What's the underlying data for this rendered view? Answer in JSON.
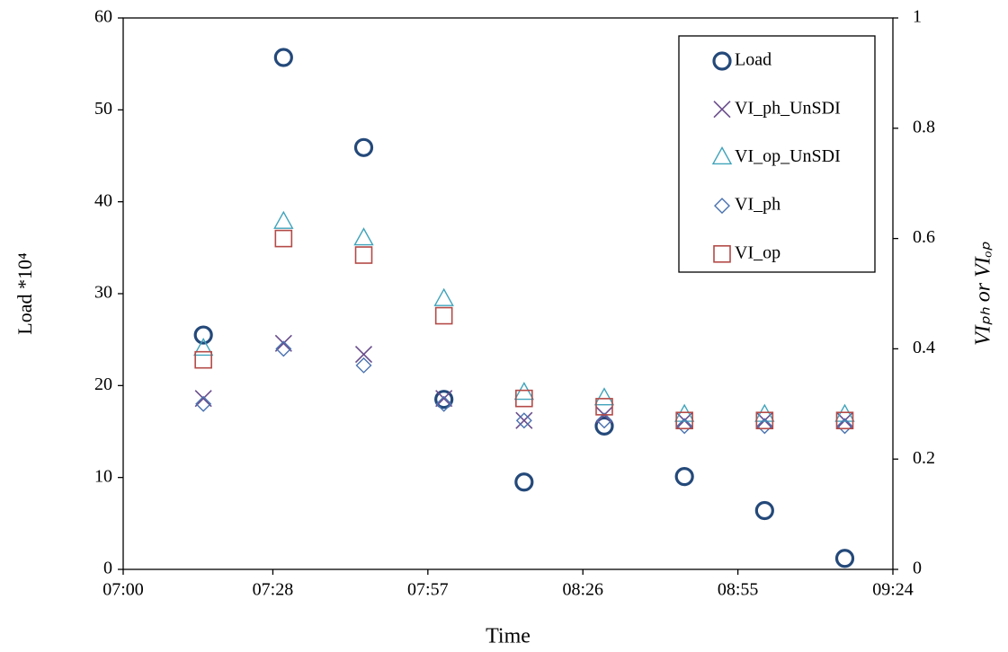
{
  "chart_data": {
    "type": "scatter",
    "x_label": "Time",
    "y_label": "Load *10⁴",
    "y2_label": "VIₚₕ or VIₒₚ",
    "x": [
      "07:15",
      "07:30",
      "07:45",
      "08:00",
      "08:15",
      "08:30",
      "08:45",
      "09:00",
      "09:15"
    ],
    "xlim": [
      "07:00",
      "09:24"
    ],
    "xticks": [
      "07:00",
      "07:28",
      "07:57",
      "08:26",
      "08:55",
      "09:24"
    ],
    "ylim": [
      0,
      60
    ],
    "yticks": [
      0,
      10,
      20,
      30,
      40,
      50,
      60
    ],
    "y2lim": [
      0,
      1
    ],
    "y2ticks": [
      0,
      0.2,
      0.4,
      0.6,
      0.8,
      1
    ],
    "legend": "upper right",
    "series": [
      {
        "name": "Load",
        "color": "#24497a",
        "marker": "circle",
        "values": [
          25.5,
          55.7,
          45.9,
          18.5,
          9.5,
          15.6,
          10.1,
          6.4,
          1.2
        ]
      },
      {
        "name": "VI_ph_UnSDI",
        "color": "#6a4d8c",
        "marker": "x",
        "axis": "y2",
        "values": [
          0.31,
          0.41,
          0.39,
          0.31,
          0.27,
          0.28,
          0.27,
          0.27,
          0.27
        ]
      },
      {
        "name": "VI_op_UnSDI",
        "color": "#3fa3bb",
        "marker": "triangle",
        "axis": "y2",
        "values": [
          0.4,
          0.63,
          0.6,
          0.49,
          0.32,
          0.31,
          0.28,
          0.28,
          0.28
        ]
      },
      {
        "name": "VI_ph",
        "color": "#4a72b0",
        "marker": "diamond",
        "axis": "y2",
        "values": [
          0.3,
          0.4,
          0.37,
          0.3,
          0.27,
          0.27,
          0.26,
          0.26,
          0.26
        ]
      },
      {
        "name": "VI_op",
        "color": "#b34a47",
        "marker": "square",
        "axis": "y2",
        "values": [
          0.38,
          0.6,
          0.57,
          0.46,
          0.31,
          0.295,
          0.27,
          0.27,
          0.27
        ]
      }
    ]
  }
}
